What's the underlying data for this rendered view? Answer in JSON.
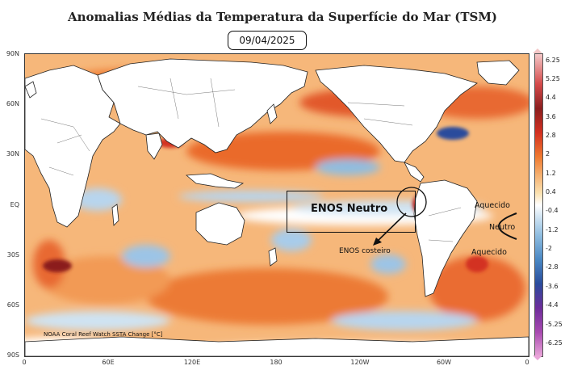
{
  "title": "Anomalias Médias da Temperatura da Superfície do Mar (TSM)",
  "date": "09/04/2025",
  "credit": "NOAA Coral Reef Watch  SSTA Change [°C]",
  "lat_labels": [
    "90N",
    "60N",
    "30N",
    "EQ",
    "30S",
    "60S",
    "90S"
  ],
  "lon_labels": [
    "0",
    "60E",
    "120E",
    "180",
    "120W",
    "60W",
    "0"
  ],
  "colorbar_labels": [
    "6.25",
    "5.25",
    "4.4",
    "3.6",
    "2.8",
    "2",
    "1.2",
    "0.4",
    "-0.4",
    "-1.2",
    "-2",
    "-2.8",
    "-3.6",
    "-4.4",
    "-5.25",
    "-6.25"
  ],
  "annotations": {
    "enos_box": "ENOS Neutro",
    "enos_costeiro": "ENOS costeiro",
    "aquecido_north": "Aquecido",
    "neutro": "Neutro",
    "aquecido_south": "Aquecido"
  },
  "colors": {
    "warm": "#ef7a30",
    "cool": "#4a88c4",
    "land": "#ffffff"
  }
}
